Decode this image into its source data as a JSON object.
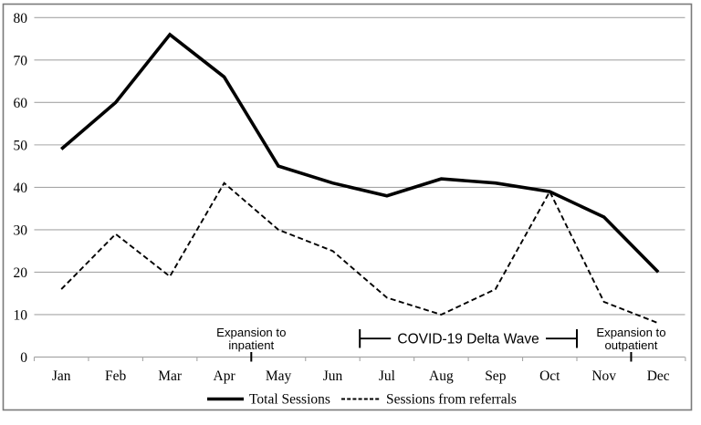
{
  "chart_data": {
    "type": "line",
    "title": "",
    "xlabel": "",
    "ylabel": "",
    "ylim": [
      0,
      80
    ],
    "ytick_step": 10,
    "grid": "horizontal",
    "legend_position": "bottom-center",
    "categories": [
      "Jan",
      "Feb",
      "Mar",
      "Apr",
      "May",
      "Jun",
      "Jul",
      "Aug",
      "Sep",
      "Oct",
      "Nov",
      "Dec"
    ],
    "series": [
      {
        "name": "Total Sessions",
        "style": "solid",
        "values": [
          49,
          60,
          76,
          66,
          45,
          41,
          38,
          42,
          41,
          39,
          33,
          20
        ]
      },
      {
        "name": "Sessions from referrals",
        "style": "dashed",
        "values": [
          16,
          29,
          19,
          41,
          30,
          25,
          14,
          10,
          16,
          39,
          13,
          8
        ]
      }
    ],
    "annotations": [
      {
        "id": "expansion-inpatient",
        "type": "event-marker",
        "lines": [
          "Expansion to",
          "inpatient"
        ],
        "between_months": [
          "Apr",
          "May"
        ]
      },
      {
        "id": "covid-delta-wave",
        "type": "span-bracket",
        "label": "COVID-19 Delta Wave",
        "from_between": [
          "Jun",
          "Jul"
        ],
        "to_between": [
          "Oct",
          "Nov"
        ]
      },
      {
        "id": "expansion-outpatient",
        "type": "event-marker",
        "lines": [
          "Expansion to",
          "outpatient"
        ],
        "between_months": [
          "Nov",
          "Dec"
        ]
      }
    ]
  },
  "colors": {
    "line": "#000000",
    "gridline": "#a6a6a6",
    "axis": "#a6a6a6",
    "border": "#7a7a7a",
    "background": "#ffffff",
    "text": "#000000"
  }
}
